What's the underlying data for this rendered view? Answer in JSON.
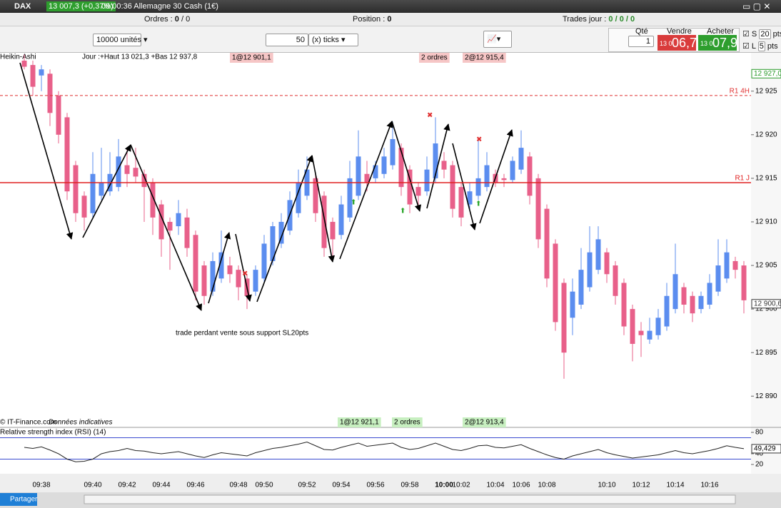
{
  "header": {
    "instrument": "DAX",
    "quote": "13 007,3 (+0,37%)",
    "time_title": "09:00:36 Allemagne 30 Cash (1€)"
  },
  "status": {
    "orders_label": "Ordres :",
    "orders": "0",
    "orders_total": "/ 0",
    "position_label": "Position :",
    "position": "0",
    "trades_label": "Trades jour :",
    "trades": "0 / 0 / 0"
  },
  "toolbar": {
    "units": "10000 unités",
    "ticks_value": "50",
    "ticks_unit": "(x) ticks",
    "qty_label": "Qté",
    "qty": "1",
    "sell_label": "Vendre",
    "sell_small": "13 0",
    "sell_big": "06,7",
    "buy_label": "Acheter",
    "buy_small": "13 0",
    "buy_big": "07,9",
    "s_label": "S",
    "s_value": "20",
    "s_unit": "pts",
    "l_label": "L",
    "l_value": "5",
    "l_unit": "pts"
  },
  "price_chart": {
    "type": "candlestick",
    "style_label": "Heikin-Ashi",
    "info": "Jour :+Haut 13 021,3 +Bas 12 937,8",
    "up_color": "#5b8def",
    "down_color": "#e8608a",
    "ylim": [
      12886.5,
      12929.4
    ],
    "yticks": [
      {
        "value": 12890,
        "label": "12 890"
      },
      {
        "value": 12895,
        "label": "12 895"
      },
      {
        "value": 12900,
        "label": "12 900"
      },
      {
        "value": 12905,
        "label": "12 905"
      },
      {
        "value": 12910,
        "label": "12 910"
      },
      {
        "value": 12915,
        "label": "12 915"
      },
      {
        "value": 12920,
        "label": "12 920"
      },
      {
        "value": 12925,
        "label": "12 925"
      }
    ],
    "levels": [
      {
        "label": "R1 4H",
        "value": 12924.5,
        "color": "#e03030",
        "style": "dashed"
      },
      {
        "label": "R1 J",
        "value": 12914.5,
        "color": "#e02020",
        "style": "solid"
      }
    ],
    "tags": [
      {
        "value": 12927.0,
        "label": "12 927,0",
        "color": "#2a9a2a"
      },
      {
        "value": 12900.6,
        "label": "12 900,6",
        "color": "#333333"
      }
    ],
    "orders_top": [
      "1@12 901,1",
      "2 ordres",
      "2@12 915,4"
    ],
    "orders_bottom": [
      "1@12 921,1",
      "2 ordres",
      "2@12 913,4"
    ],
    "annotation": "trade perdant vente sous support SL20pts",
    "source": "© IT-Finance.com",
    "source_note": "Données indicatives",
    "candles": [
      [
        12928.5,
        12929.2,
        12927.5,
        12927.8
      ],
      [
        12928.0,
        12928.5,
        12924.5,
        12925.5
      ],
      [
        12926.8,
        12928.0,
        12925.0,
        12927.5
      ],
      [
        12927.0,
        12927.5,
        12921.0,
        12922.5
      ],
      [
        12924.5,
        12925.0,
        12919.0,
        12920.0
      ],
      [
        12922.0,
        12922.5,
        12912.5,
        12913.5
      ],
      [
        12916.5,
        12917.0,
        12910.0,
        12911.0
      ],
      [
        12913.0,
        12913.5,
        12909.0,
        12910.5
      ],
      [
        12911.0,
        12918.0,
        12910.5,
        12915.5
      ],
      [
        12913.0,
        12918.5,
        12912.5,
        12914.5
      ],
      [
        12913.5,
        12918.0,
        12913.0,
        12915.5
      ],
      [
        12914.0,
        12919.5,
        12913.5,
        12917.5
      ],
      [
        12916.5,
        12918.5,
        12914.0,
        12915.5
      ],
      [
        12916.2,
        12918.5,
        12914.5,
        12915.2
      ],
      [
        12915.5,
        12916.0,
        12910.0,
        12914.0
      ],
      [
        12914.5,
        12915.0,
        12908.5,
        12910.5
      ],
      [
        12912.0,
        12912.5,
        12906.0,
        12908.0
      ],
      [
        12910.0,
        12910.5,
        12904.5,
        12909.0
      ],
      [
        12909.5,
        12912.5,
        12908.5,
        12911.0
      ],
      [
        12910.5,
        12911.5,
        12906.0,
        12907.0
      ],
      [
        12908.5,
        12909.0,
        12901.0,
        12902.0
      ],
      [
        12905.0,
        12905.5,
        12900.5,
        12901.5
      ],
      [
        12902.0,
        12906.5,
        12901.5,
        12905.5
      ],
      [
        12903.5,
        12909.0,
        12903.0,
        12906.5
      ],
      [
        12905.0,
        12906.0,
        12903.0,
        12904.0
      ],
      [
        12904.5,
        12905.0,
        12901.0,
        12902.5
      ],
      [
        12903.5,
        12904.0,
        12900.0,
        12901.5
      ],
      [
        12902.0,
        12905.0,
        12901.5,
        12904.5
      ],
      [
        12903.5,
        12908.5,
        12903.0,
        12907.5
      ],
      [
        12905.5,
        12910.0,
        12905.0,
        12909.5
      ],
      [
        12907.5,
        12911.0,
        12907.0,
        12910.0
      ],
      [
        12909.0,
        12913.5,
        12908.5,
        12912.5
      ],
      [
        12911.0,
        12916.0,
        12910.5,
        12914.5
      ],
      [
        12913.0,
        12917.5,
        12912.5,
        12916.0
      ],
      [
        12915.0,
        12915.5,
        12910.0,
        12911.0
      ],
      [
        12913.0,
        12913.5,
        12906.0,
        12907.0
      ],
      [
        12910.0,
        12910.5,
        12905.5,
        12908.0
      ],
      [
        12908.5,
        12913.0,
        12908.0,
        12912.0
      ],
      [
        12910.5,
        12917.0,
        12910.0,
        12915.0
      ],
      [
        12913.0,
        12920.5,
        12912.5,
        12917.5
      ],
      [
        12915.5,
        12917.0,
        12913.5,
        12914.5
      ],
      [
        12915.0,
        12917.0,
        12914.5,
        12916.5
      ],
      [
        12915.5,
        12918.5,
        12915.0,
        12917.5
      ],
      [
        12916.5,
        12921.5,
        12916.0,
        12919.5
      ],
      [
        12918.5,
        12919.0,
        12913.0,
        12914.0
      ],
      [
        12916.0,
        12916.5,
        12911.0,
        12912.0
      ],
      [
        12914.0,
        12914.5,
        12911.5,
        12913.0
      ],
      [
        12913.5,
        12917.5,
        12913.0,
        12916.0
      ],
      [
        12915.0,
        12922.0,
        12914.5,
        12919.0
      ],
      [
        12917.0,
        12918.0,
        12915.0,
        12916.0
      ],
      [
        12916.5,
        12917.0,
        12910.5,
        12911.5
      ],
      [
        12914.0,
        12914.5,
        12909.5,
        12910.5
      ],
      [
        12912.0,
        12914.5,
        12911.5,
        12913.5
      ],
      [
        12913.0,
        12919.5,
        12912.5,
        12915.0
      ],
      [
        12914.0,
        12918.0,
        12913.5,
        12916.5
      ],
      [
        12915.5,
        12916.0,
        12914.0,
        12914.5
      ],
      [
        12915.0,
        12915.5,
        12914.0,
        12914.8
      ],
      [
        12914.8,
        12917.5,
        12914.5,
        12917.0
      ],
      [
        12916.0,
        12920.5,
        12915.5,
        12918.5
      ],
      [
        12917.5,
        12918.0,
        12912.0,
        12913.0
      ],
      [
        12915.0,
        12915.5,
        12907.0,
        12908.0
      ],
      [
        12911.5,
        12912.0,
        12902.5,
        12903.5
      ],
      [
        12907.5,
        12908.0,
        12897.5,
        12898.5
      ],
      [
        12903.0,
        12903.5,
        12892.0,
        12895.0
      ],
      [
        12899.0,
        12903.5,
        12897.0,
        12902.0
      ],
      [
        12900.5,
        12907.0,
        12900.0,
        12904.5
      ],
      [
        12902.5,
        12909.5,
        12902.0,
        12906.5
      ],
      [
        12904.5,
        12909.5,
        12904.0,
        12908.0
      ],
      [
        12906.5,
        12907.0,
        12903.0,
        12904.0
      ],
      [
        12905.0,
        12905.5,
        12900.5,
        12901.5
      ],
      [
        12903.0,
        12903.5,
        12897.0,
        12898.0
      ],
      [
        12900.0,
        12900.5,
        12894.0,
        12896.0
      ],
      [
        12897.5,
        12898.5,
        12894.5,
        12897.0
      ],
      [
        12896.5,
        12899.0,
        12896.0,
        12897.5
      ],
      [
        12897.0,
        12900.0,
        12896.5,
        12899.0
      ],
      [
        12898.0,
        12903.0,
        12897.5,
        12901.5
      ],
      [
        12900.0,
        12907.5,
        12899.5,
        12904.0
      ],
      [
        12902.5,
        12903.0,
        12899.5,
        12900.5
      ],
      [
        12901.5,
        12902.0,
        12898.5,
        12899.5
      ],
      [
        12900.0,
        12902.0,
        12899.5,
        12901.5
      ],
      [
        12900.5,
        12904.0,
        12900.0,
        12903.0
      ],
      [
        12902.0,
        12908.0,
        12901.5,
        12905.0
      ],
      [
        12903.5,
        12908.0,
        12903.0,
        12906.5
      ],
      [
        12905.5,
        12906.0,
        12903.5,
        12904.5
      ],
      [
        12905.0,
        12905.5,
        12899.5,
        12901.0
      ]
    ],
    "times": [
      null,
      null,
      "09:38",
      null,
      null,
      null,
      null,
      null,
      "09:40",
      null,
      null,
      null,
      "09:42",
      null,
      null,
      null,
      "09:44",
      null,
      null,
      null,
      "09:46",
      null,
      null,
      null,
      null,
      "09:48",
      null,
      null,
      "09:50",
      null,
      null,
      null,
      null,
      "09:52",
      null,
      null,
      null,
      "09:54",
      null,
      null,
      null,
      "09:56",
      null,
      null,
      null,
      "09:58",
      null,
      null,
      null,
      "10:00",
      null,
      "10:02",
      null,
      null,
      null,
      "10:04",
      null,
      null,
      "10:06",
      null,
      null,
      "10:08",
      null,
      null,
      null,
      null,
      null,
      null,
      "10:10",
      null,
      null,
      null,
      "10:12",
      null,
      null,
      null,
      "10:14",
      null,
      null,
      null,
      "10:16",
      null,
      null,
      null,
      null
    ]
  },
  "rsi": {
    "title": "Relative strength index (RSI) (14)",
    "ylim": [
      5.3,
      88
    ],
    "yticks": [
      80,
      40,
      20
    ],
    "levels": [
      70,
      30
    ],
    "color": "#222222",
    "level_color": "#3a4bd0",
    "values": [
      52,
      50,
      53,
      47,
      40,
      30,
      25,
      26,
      30,
      40,
      44,
      46,
      50,
      46,
      45,
      42,
      40,
      42,
      44,
      40,
      36,
      33,
      38,
      42,
      40,
      38,
      36,
      42,
      46,
      50,
      52,
      55,
      58,
      62,
      55,
      48,
      47,
      52,
      56,
      60,
      54,
      56,
      58,
      60,
      52,
      48,
      50,
      55,
      60,
      54,
      48,
      46,
      50,
      55,
      56,
      52,
      51,
      54,
      57,
      50,
      44,
      38,
      33,
      30,
      36,
      40,
      44,
      48,
      42,
      38,
      35,
      32,
      34,
      36,
      38,
      42,
      46,
      42,
      40,
      43,
      46,
      50,
      55,
      52,
      49.429
    ],
    "current_label": "49,429"
  },
  "footer": {
    "share": "Partager"
  }
}
